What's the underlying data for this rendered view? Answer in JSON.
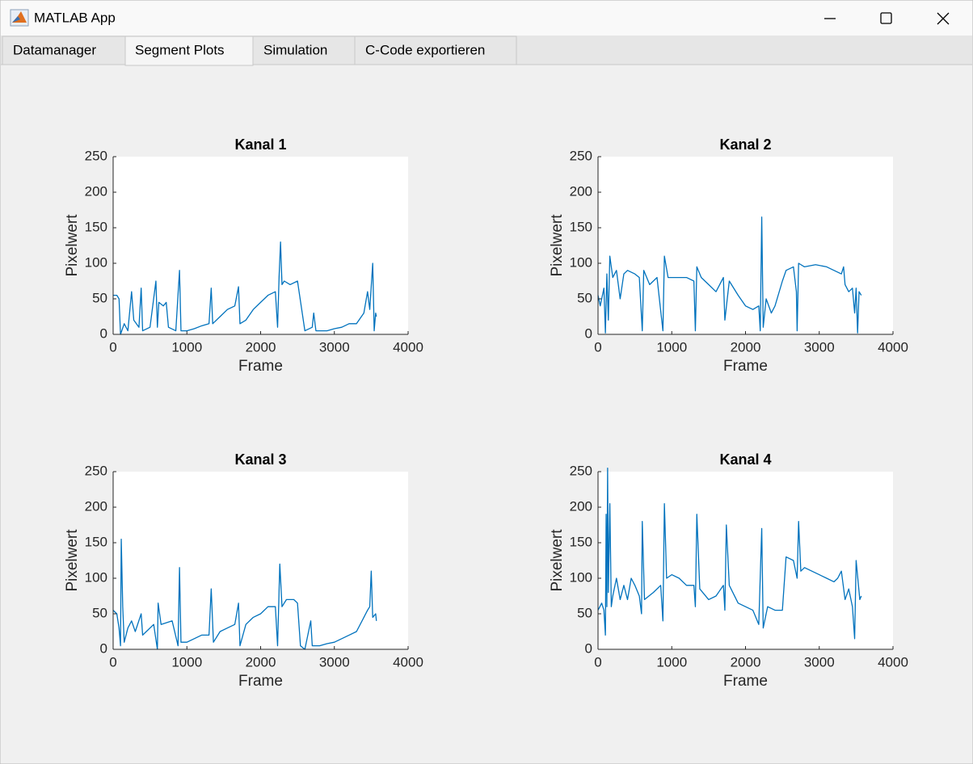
{
  "window": {
    "title": "MATLAB App"
  },
  "tabs": [
    "Datamanager",
    "Segment Plots",
    "Simulation",
    "C-Code exportieren"
  ],
  "chart_data": [
    {
      "type": "line",
      "title": "Kanal 1",
      "xlabel": "Frame",
      "ylabel": "Pixelwert",
      "color": "#0072bd",
      "xlim": [
        0,
        4000
      ],
      "ylim": [
        0,
        250
      ],
      "xticks": [
        0,
        1000,
        2000,
        3000,
        4000
      ],
      "yticks": [
        0,
        50,
        100,
        150,
        200,
        250
      ],
      "x": [
        0,
        50,
        80,
        100,
        150,
        200,
        250,
        280,
        350,
        380,
        400,
        500,
        580,
        600,
        620,
        680,
        720,
        750,
        850,
        900,
        920,
        1000,
        1100,
        1200,
        1300,
        1330,
        1350,
        1450,
        1550,
        1650,
        1700,
        1720,
        1800,
        1900,
        2000,
        2100,
        2200,
        2230,
        2250,
        2270,
        2290,
        2320,
        2400,
        2500,
        2550,
        2600,
        2700,
        2720,
        2750,
        2900,
        3000,
        3100,
        3200,
        3300,
        3400,
        3450,
        3480,
        3520,
        3540,
        3560,
        3570
      ],
      "values": [
        55,
        55,
        50,
        0,
        15,
        5,
        60,
        20,
        10,
        65,
        5,
        10,
        75,
        10,
        45,
        40,
        45,
        10,
        5,
        90,
        5,
        5,
        8,
        12,
        15,
        65,
        15,
        25,
        35,
        40,
        67,
        15,
        20,
        35,
        45,
        55,
        60,
        10,
        80,
        130,
        70,
        75,
        70,
        75,
        40,
        5,
        10,
        30,
        5,
        5,
        8,
        10,
        15,
        15,
        30,
        60,
        35,
        100,
        5,
        30,
        25
      ]
    },
    {
      "type": "line",
      "title": "Kanal 2",
      "xlabel": "Frame",
      "ylabel": "Pixelwert",
      "color": "#0072bd",
      "xlim": [
        0,
        4000
      ],
      "ylim": [
        0,
        250
      ],
      "xticks": [
        0,
        1000,
        2000,
        3000,
        4000
      ],
      "yticks": [
        0,
        50,
        100,
        150,
        200,
        250
      ],
      "x": [
        0,
        30,
        80,
        100,
        120,
        140,
        160,
        200,
        250,
        300,
        350,
        400,
        500,
        560,
        600,
        620,
        700,
        800,
        880,
        900,
        950,
        1100,
        1200,
        1300,
        1320,
        1340,
        1400,
        1500,
        1600,
        1700,
        1720,
        1780,
        1900,
        2000,
        2100,
        2180,
        2200,
        2220,
        2240,
        2280,
        2350,
        2400,
        2500,
        2550,
        2650,
        2690,
        2700,
        2720,
        2800,
        2950,
        3100,
        3200,
        3300,
        3330,
        3350,
        3400,
        3450,
        3480,
        3500,
        3520,
        3540,
        3570
      ],
      "values": [
        55,
        40,
        65,
        2,
        85,
        20,
        110,
        80,
        90,
        50,
        85,
        90,
        85,
        80,
        5,
        90,
        70,
        80,
        5,
        110,
        80,
        80,
        80,
        75,
        5,
        95,
        80,
        70,
        60,
        80,
        20,
        75,
        55,
        40,
        35,
        40,
        5,
        165,
        10,
        50,
        30,
        40,
        75,
        90,
        95,
        60,
        5,
        100,
        95,
        98,
        95,
        90,
        85,
        95,
        70,
        60,
        65,
        30,
        65,
        2,
        60,
        55
      ]
    },
    {
      "type": "line",
      "title": "Kanal 3",
      "xlabel": "Frame",
      "ylabel": "Pixelwert",
      "color": "#0072bd",
      "xlim": [
        0,
        4000
      ],
      "ylim": [
        0,
        250
      ],
      "xticks": [
        0,
        1000,
        2000,
        3000,
        4000
      ],
      "yticks": [
        0,
        50,
        100,
        150,
        200,
        250
      ],
      "x": [
        0,
        50,
        80,
        100,
        110,
        130,
        150,
        200,
        250,
        300,
        380,
        400,
        450,
        550,
        600,
        610,
        650,
        800,
        880,
        900,
        920,
        1000,
        1100,
        1200,
        1300,
        1330,
        1360,
        1450,
        1550,
        1650,
        1700,
        1720,
        1800,
        1900,
        2000,
        2100,
        2200,
        2230,
        2260,
        2290,
        2350,
        2450,
        2500,
        2540,
        2600,
        2680,
        2700,
        2800,
        2900,
        3000,
        3100,
        3200,
        3300,
        3400,
        3450,
        3480,
        3500,
        3520,
        3560,
        3570
      ],
      "values": [
        55,
        50,
        30,
        5,
        155,
        60,
        10,
        30,
        40,
        25,
        50,
        20,
        25,
        35,
        0,
        65,
        35,
        40,
        5,
        115,
        10,
        10,
        15,
        20,
        20,
        85,
        10,
        25,
        30,
        35,
        65,
        5,
        35,
        45,
        50,
        60,
        60,
        5,
        120,
        60,
        70,
        70,
        65,
        5,
        0,
        40,
        5,
        5,
        8,
        10,
        15,
        20,
        25,
        45,
        55,
        60,
        110,
        45,
        50,
        40
      ]
    },
    {
      "type": "line",
      "title": "Kanal 4",
      "xlabel": "Frame",
      "ylabel": "Pixelwert",
      "color": "#0072bd",
      "xlim": [
        0,
        4000
      ],
      "ylim": [
        0,
        250
      ],
      "xticks": [
        0,
        1000,
        2000,
        3000,
        4000
      ],
      "yticks": [
        0,
        50,
        100,
        150,
        200,
        250
      ],
      "x": [
        0,
        50,
        80,
        100,
        110,
        120,
        130,
        140,
        160,
        180,
        200,
        250,
        300,
        350,
        400,
        450,
        500,
        560,
        590,
        600,
        630,
        750,
        850,
        880,
        900,
        930,
        1000,
        1100,
        1200,
        1300,
        1320,
        1340,
        1380,
        1500,
        1600,
        1700,
        1720,
        1740,
        1780,
        1900,
        2000,
        2100,
        2180,
        2220,
        2240,
        2300,
        2400,
        2500,
        2550,
        2650,
        2700,
        2720,
        2750,
        2800,
        2900,
        3000,
        3100,
        3200,
        3250,
        3300,
        3350,
        3400,
        3450,
        3480,
        3500,
        3550,
        3570
      ],
      "values": [
        55,
        65,
        55,
        20,
        190,
        60,
        255,
        80,
        205,
        60,
        75,
        100,
        70,
        90,
        70,
        100,
        90,
        75,
        50,
        180,
        70,
        80,
        90,
        40,
        205,
        100,
        105,
        100,
        90,
        90,
        60,
        190,
        85,
        70,
        75,
        90,
        55,
        175,
        90,
        65,
        60,
        55,
        35,
        170,
        30,
        60,
        55,
        55,
        130,
        125,
        100,
        180,
        110,
        115,
        110,
        105,
        100,
        95,
        100,
        110,
        70,
        85,
        60,
        15,
        125,
        70,
        75
      ]
    }
  ]
}
